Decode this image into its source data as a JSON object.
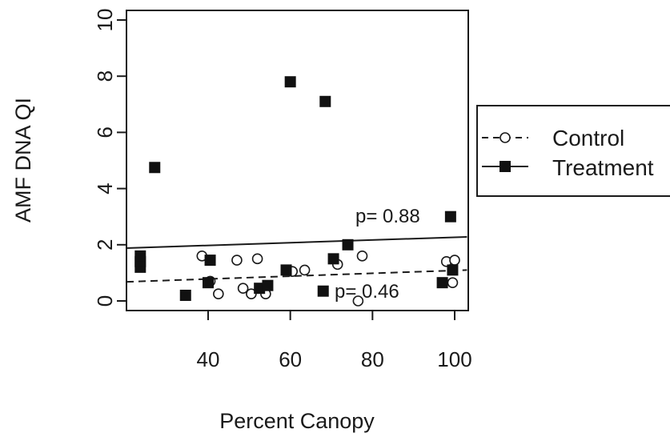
{
  "chart_data": {
    "type": "scatter",
    "xlabel": "Percent Canopy",
    "ylabel": "AMF DNA QI",
    "xlim": [
      20,
      103
    ],
    "ylim": [
      0,
      10
    ],
    "x_ticks": [
      40,
      60,
      80,
      100
    ],
    "y_ticks": [
      0,
      2,
      4,
      6,
      8,
      10
    ],
    "grid": false,
    "legend_position": "right",
    "series": [
      {
        "name": "Control",
        "marker": "open-circle",
        "line_style": "dashed",
        "points": [
          {
            "x": 38.5,
            "y": 1.6
          },
          {
            "x": 40.5,
            "y": 0.7
          },
          {
            "x": 42.5,
            "y": 0.25
          },
          {
            "x": 47,
            "y": 1.45
          },
          {
            "x": 48.5,
            "y": 0.45
          },
          {
            "x": 50.5,
            "y": 0.25
          },
          {
            "x": 52,
            "y": 1.5
          },
          {
            "x": 54,
            "y": 0.25
          },
          {
            "x": 60.5,
            "y": 1.05
          },
          {
            "x": 63.5,
            "y": 1.1
          },
          {
            "x": 71.5,
            "y": 1.3
          },
          {
            "x": 76.5,
            "y": 0.0
          },
          {
            "x": 77.5,
            "y": 1.6
          },
          {
            "x": 98,
            "y": 1.4
          },
          {
            "x": 99.5,
            "y": 0.65
          },
          {
            "x": 100,
            "y": 1.45
          }
        ],
        "fit": {
          "x": [
            20,
            103
          ],
          "y": [
            0.68,
            1.1
          ]
        },
        "p_label": "p= 0.46"
      },
      {
        "name": "Treatment",
        "marker": "filled-square",
        "line_style": "solid",
        "points": [
          {
            "x": 23.5,
            "y": 1.2
          },
          {
            "x": 23.5,
            "y": 1.4
          },
          {
            "x": 23.5,
            "y": 1.6
          },
          {
            "x": 27,
            "y": 4.75
          },
          {
            "x": 34.5,
            "y": 0.2
          },
          {
            "x": 40,
            "y": 0.65
          },
          {
            "x": 40.5,
            "y": 1.45
          },
          {
            "x": 52.5,
            "y": 0.45
          },
          {
            "x": 54.5,
            "y": 0.55
          },
          {
            "x": 59,
            "y": 1.1
          },
          {
            "x": 60,
            "y": 7.8
          },
          {
            "x": 68,
            "y": 0.35
          },
          {
            "x": 68.5,
            "y": 7.1
          },
          {
            "x": 70.5,
            "y": 1.5
          },
          {
            "x": 74,
            "y": 2.0
          },
          {
            "x": 97,
            "y": 0.65
          },
          {
            "x": 99,
            "y": 3.0
          },
          {
            "x": 99.5,
            "y": 1.1
          }
        ],
        "fit": {
          "x": [
            20,
            103
          ],
          "y": [
            1.88,
            2.28
          ]
        },
        "p_label": "p= 0.88"
      }
    ]
  }
}
